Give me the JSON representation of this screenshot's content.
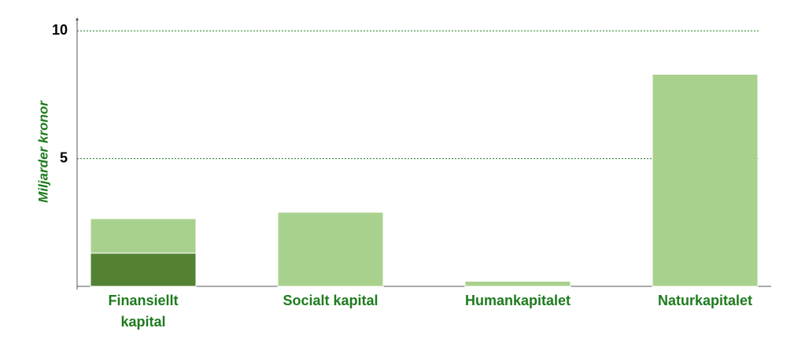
{
  "chart_data": {
    "type": "stacked_bar",
    "y_label": "Miljarder kronor",
    "categories": [
      "Finansiellt kapital",
      "Socialt kapital",
      "Humankapitalet",
      "Naturkapitalet"
    ],
    "series": [
      {
        "color": "#548235",
        "values": [
          1.3,
          null,
          null,
          null
        ]
      },
      {
        "color": "#a9d18e",
        "values": [
          1.35,
          2.9,
          0.2,
          8.3
        ]
      }
    ],
    "ylim": [
      0,
      10.5
    ],
    "yticks": [
      5,
      10
    ],
    "grid": true
  }
}
